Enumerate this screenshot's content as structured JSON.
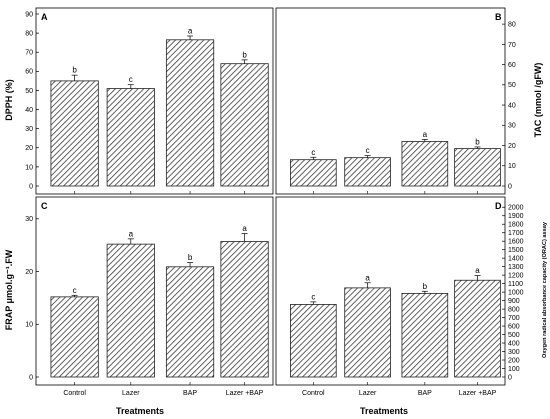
{
  "chart_data": [
    {
      "panel": "A",
      "type": "bar",
      "categories": [
        "Control",
        "Lazer",
        "BAP",
        "Lazer +BAP"
      ],
      "values": [
        55,
        51,
        76.5,
        64
      ],
      "errors": [
        3,
        2,
        2,
        2
      ],
      "letters": [
        "b",
        "c",
        "a",
        "b"
      ],
      "ylabel": "DPPH (%)",
      "ylim": [
        0,
        90
      ],
      "yticks": [
        0,
        10,
        20,
        30,
        40,
        50,
        60,
        70,
        80,
        90
      ],
      "yaxis_side": "left",
      "hatch": "diagonal"
    },
    {
      "panel": "B",
      "type": "bar",
      "categories": [
        "Control",
        "Lazer",
        "BAP",
        "Lazer +BAP"
      ],
      "values": [
        13,
        14,
        22,
        18.5
      ],
      "errors": [
        1.2,
        1,
        1,
        0.8
      ],
      "letters": [
        "c",
        "c",
        "a",
        "b"
      ],
      "ylabel": "TAC (mmol /gFW)",
      "ylim": [
        0,
        85
      ],
      "yticks": [
        0,
        10,
        20,
        30,
        40,
        50,
        60,
        70,
        80
      ],
      "yaxis_side": "right",
      "hatch": "diagonal"
    },
    {
      "panel": "C",
      "type": "bar",
      "categories": [
        "Control",
        "Lazer",
        "BAP",
        "Lazer +BAP"
      ],
      "values": [
        15.2,
        25.2,
        20.9,
        25.7
      ],
      "errors": [
        0.3,
        1,
        0.8,
        1.5
      ],
      "letters": [
        "c",
        "a",
        "b",
        "a"
      ],
      "ylabel": "FRAP μmol.g⁻¹.FW",
      "ylim": [
        0,
        33
      ],
      "yticks": [
        0,
        10,
        20,
        30
      ],
      "yaxis_side": "left",
      "hatch": "diagonal"
    },
    {
      "panel": "D",
      "type": "bar",
      "categories": [
        "Control",
        "Lazer",
        "BAP",
        "Lazer +BAP"
      ],
      "values": [
        855,
        1050,
        985,
        1140
      ],
      "errors": [
        30,
        60,
        25,
        55
      ],
      "letters": [
        "c",
        "a",
        "b",
        "a"
      ],
      "ylabel": "Oxygen radical absorbance capacity (ORAC) assay",
      "ylim": [
        0,
        2050
      ],
      "yticks": [
        0,
        100,
        200,
        300,
        400,
        500,
        600,
        700,
        800,
        900,
        1000,
        1100,
        1200,
        1300,
        1400,
        1500,
        1600,
        1700,
        1800,
        1900,
        2000
      ],
      "yaxis_side": "right",
      "hatch": "diagonal"
    }
  ],
  "xlabel": "Treatments",
  "colors": {
    "bar_stroke": "#222222",
    "hatch": "#3a3a3a",
    "axis": "#000000"
  }
}
